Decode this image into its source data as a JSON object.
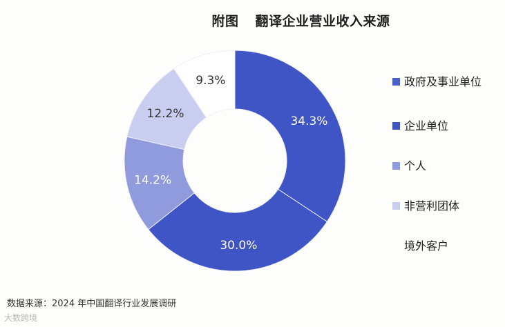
{
  "title_prefix": "附图",
  "title": "翻译企业营业收入来源",
  "source": "数据来源：2024 年中国翻译行业发展调研",
  "watermark": "大数跨境",
  "chart_data": {
    "type": "pie",
    "variant": "donut",
    "title": "翻译企业营业收入来源",
    "categories": [
      "政府及事业单位",
      "企业单位",
      "个人",
      "非营利团体",
      "境外客户"
    ],
    "values": [
      34.3,
      30.0,
      14.2,
      12.2,
      9.3
    ],
    "labels": [
      "34.3%",
      "30.0%",
      "14.2%",
      "12.2%",
      "9.3%"
    ],
    "colors": [
      "#3f55c6",
      "#3f55c6",
      "#8f9bdc",
      "#c9cdef",
      "#ffffff"
    ],
    "legend_entries": [
      "政府及事业单位",
      "企业单位",
      "个人",
      "非营利团体",
      "境外客户"
    ],
    "legend_colors": [
      "#4a5fc8",
      "#3f55c6",
      "#8f9bdc",
      "#c9cdef",
      ""
    ],
    "legend_position": "right",
    "label_colors": [
      "#ffffff",
      "#ffffff",
      "#ffffff",
      "#333333",
      "#333333"
    ]
  }
}
